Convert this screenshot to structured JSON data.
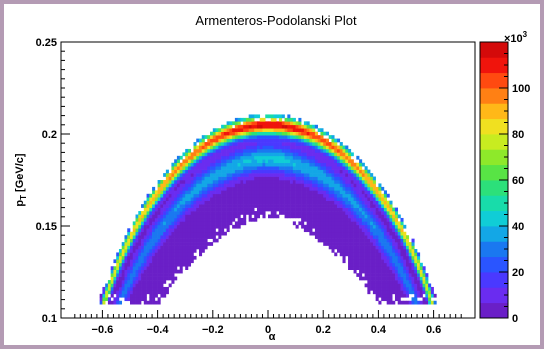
{
  "colors": {
    "background": "#b49bb4",
    "canvas": "#ffffff"
  },
  "chart_data": {
    "type": "heatmap",
    "title": "Armenteros-Podolanski Plot",
    "xlabel": "α",
    "ylabel_main": "p",
    "ylabel_sub": "T",
    "ylabel_unit": "[GeV/c]",
    "xlim": [
      -0.75,
      0.75
    ],
    "ylim": [
      0.1,
      0.25
    ],
    "x_ticks": [
      {
        "value": -0.6,
        "label": "−0.6"
      },
      {
        "value": -0.4,
        "label": "−0.4"
      },
      {
        "value": -0.2,
        "label": "−0.2"
      },
      {
        "value": 0,
        "label": "0"
      },
      {
        "value": 0.2,
        "label": "0.2"
      },
      {
        "value": 0.4,
        "label": "0.4"
      },
      {
        "value": 0.6,
        "label": "0.6"
      }
    ],
    "y_ticks": [
      {
        "value": 0.1,
        "label": "0.1"
      },
      {
        "value": 0.15,
        "label": "0.15"
      },
      {
        "value": 0.2,
        "label": "0.2"
      },
      {
        "value": 0.25,
        "label": "0.25"
      }
    ],
    "colorbar": {
      "min": 0,
      "max": 120,
      "multiplier_base": "×10",
      "multiplier_exp": "3",
      "ticks": [
        {
          "value": 0,
          "label": "0"
        },
        {
          "value": 20,
          "label": "20"
        },
        {
          "value": 40,
          "label": "40"
        },
        {
          "value": 60,
          "label": "60"
        },
        {
          "value": 80,
          "label": "80"
        },
        {
          "value": 100,
          "label": "100"
        }
      ],
      "palette": [
        "#6a1fc7",
        "#6a2cf0",
        "#4a39ff",
        "#2a55ff",
        "#1a78f0",
        "#13a7e6",
        "#10cdd6",
        "#18dcaa",
        "#2ce07a",
        "#58e445",
        "#8ee92a",
        "#c8ec20",
        "#f0e020",
        "#ffb818",
        "#ff8014",
        "#ff4a10",
        "#f0140c",
        "#d40a0a"
      ]
    },
    "density_model": {
      "description": "Armenteros ellipse band: pT vs alpha",
      "ellipse_pmax": 0.205,
      "ellipse_alpha_end": 0.7,
      "peak_count": 115
    }
  }
}
